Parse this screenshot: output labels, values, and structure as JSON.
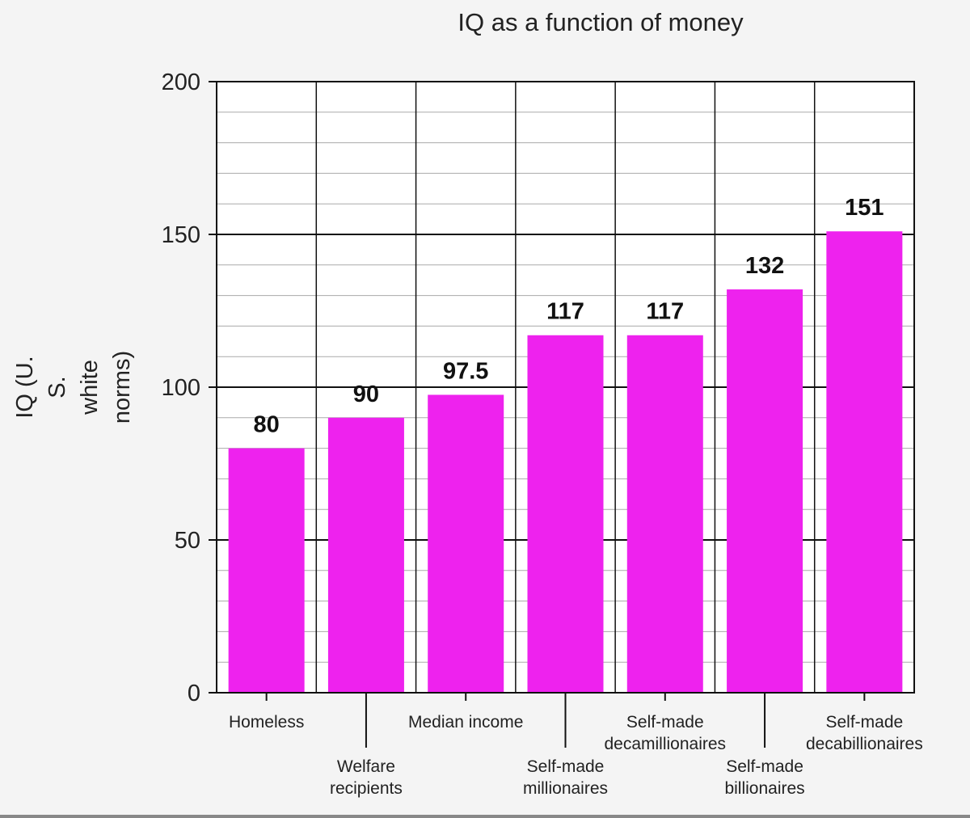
{
  "chart_data": {
    "type": "bar",
    "title": "IQ as a function of money",
    "ylabel_lines": [
      "IQ (U.",
      "S.",
      "white",
      "norms)"
    ],
    "xlabel": "",
    "ylim": [
      0,
      200
    ],
    "yticks": [
      0,
      50,
      100,
      150,
      200
    ],
    "categories": [
      [
        "Homeless"
      ],
      [
        "Welfare",
        "recipients"
      ],
      [
        "Median income"
      ],
      [
        "Self-made",
        "millionaires"
      ],
      [
        "Self-made",
        "decamillionaires"
      ],
      [
        "Self-made",
        "billionaires"
      ],
      [
        "Self-made",
        "decabillionaires"
      ]
    ],
    "values": [
      80,
      90,
      97.5,
      117,
      117,
      132,
      151
    ],
    "data_labels": [
      "80",
      "90",
      "97.5",
      "117",
      "117",
      "132",
      "151"
    ],
    "grid": true,
    "legend": "none",
    "bar_color": "#ee22ee"
  }
}
